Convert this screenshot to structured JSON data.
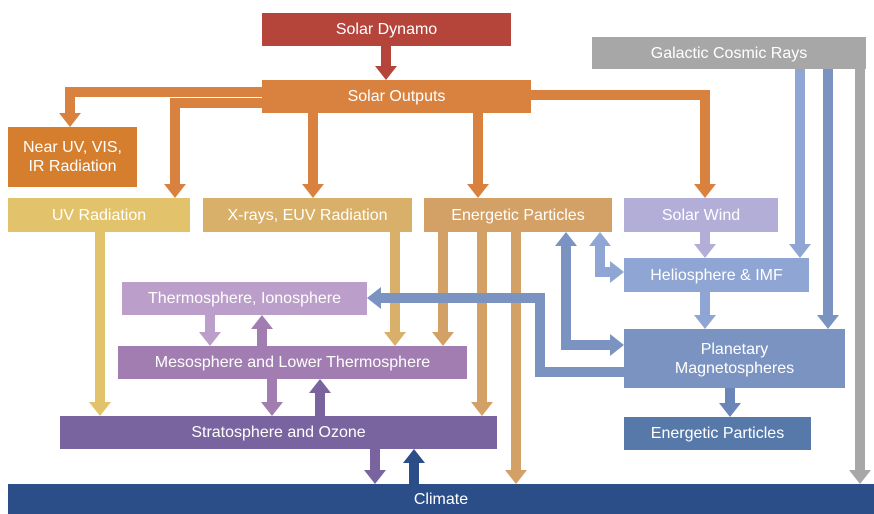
{
  "nodes": [
    {
      "label": "Solar Dynamo"
    },
    {
      "label": "Solar Outputs"
    },
    {
      "label": "Near UV, VIS, IR Radiation"
    },
    {
      "label": "UV Radiation"
    },
    {
      "label": "X-rays, EUV Radiation"
    },
    {
      "label": "Energetic Particles"
    },
    {
      "label": "Solar Wind"
    },
    {
      "label": "Galactic Cosmic Rays"
    },
    {
      "label": "Heliosphere & IMF"
    },
    {
      "label": "Thermosphere, Ionosphere"
    },
    {
      "label": "Mesosphere and Lower Thermosphere"
    },
    {
      "label": "Planetary Magnetospheres"
    },
    {
      "label": "Energetic Particles"
    },
    {
      "label": "Stratosphere and Ozone"
    },
    {
      "label": "Climate"
    }
  ]
}
